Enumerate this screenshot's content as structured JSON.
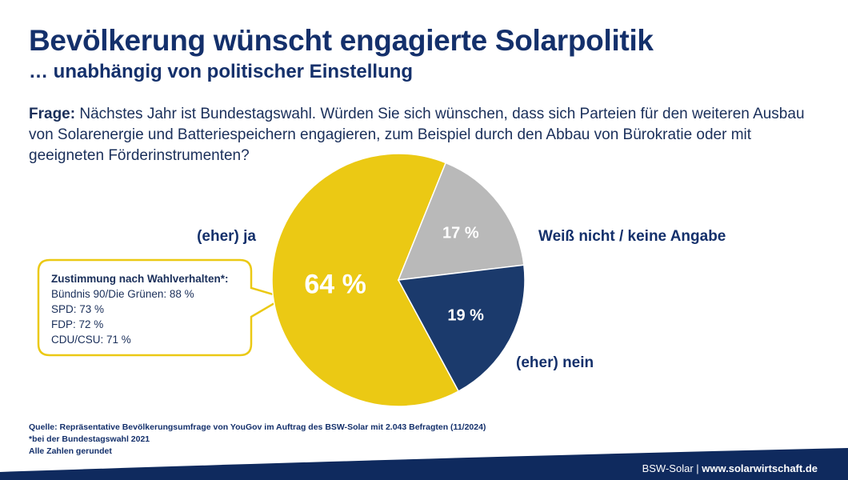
{
  "header": {
    "title": "Bevölkerung wünscht engagierte Solarpolitik",
    "subtitle": "… unabhängig von politischer Einstellung"
  },
  "question": {
    "label": "Frage:",
    "text": " Nächstes Jahr ist Bundestagswahl. Würden Sie sich wünschen, dass sich Parteien für den weiteren Ausbau von Solarenergie und Batteriespeichern engagieren, zum Beispiel durch den Abbau von Bürokratie oder mit geeigneten Förderinstrumenten?"
  },
  "chart_data": {
    "type": "pie",
    "categories": [
      "(eher) ja",
      "Weiß nicht / keine Angabe",
      "(eher) nein"
    ],
    "values": [
      64,
      17,
      19
    ],
    "value_labels": [
      "64 %",
      "17 %",
      "19 %"
    ],
    "colors": [
      "#ebc914",
      "#b9b9b9",
      "#1b3a6c"
    ],
    "value_label_colors": [
      "#ffffff",
      "#ffffff",
      "#ffffff"
    ],
    "category_label_color": "#14306b"
  },
  "callout": {
    "heading": "Zustimmung nach Wahlverhalten*:",
    "lines": [
      "Bündnis 90/Die Grünen: 88 %",
      "SPD: 73 %",
      "FDP: 72 %",
      "CDU/CSU: 71 %"
    ],
    "border_color": "#ebc914"
  },
  "source": {
    "line1": "Quelle: Repräsentative Bevölkerungsumfrage von YouGov im Auftrag des BSW-Solar mit 2.043 Befragten (11/2024)",
    "line2": "*bei der Bundestagswahl 2021",
    "line3": "Alle Zahlen gerundet"
  },
  "footer": {
    "org": "BSW-Solar",
    "separator": " | ",
    "url": "www.solarwirtschaft.de",
    "band_color": "#0f2a5e"
  }
}
